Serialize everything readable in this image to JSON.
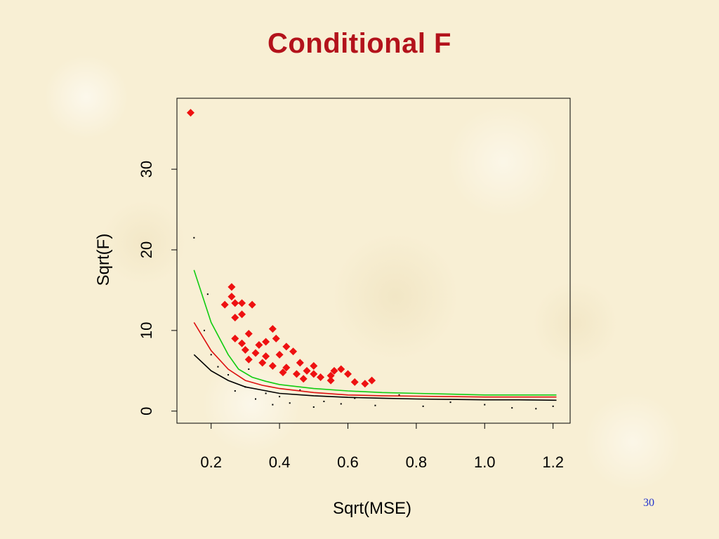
{
  "slide": {
    "title": "Conditional F",
    "page_number": "30"
  },
  "chart_data": {
    "type": "scatter",
    "title": "",
    "xlabel": "Sqrt(MSE)",
    "ylabel": "Sqrt(F)",
    "xlim": [
      0.1,
      1.25
    ],
    "ylim": [
      -1.5,
      38.8
    ],
    "xticks": [
      0.2,
      0.4,
      0.6,
      0.8,
      1.0,
      1.2
    ],
    "xtick_labels": [
      "0.2",
      "0.4",
      "0.6",
      "0.8",
      "1.0",
      "1.2"
    ],
    "yticks": [
      0,
      10,
      20,
      30
    ],
    "ytick_labels": [
      "0",
      "10",
      "20",
      "30"
    ],
    "grid": false,
    "legend": "none",
    "series": [
      {
        "marker": "dot",
        "color": "#000000",
        "points": [
          [
            0.15,
            21.5
          ],
          [
            0.19,
            14.5
          ],
          [
            0.18,
            10.0
          ],
          [
            0.2,
            7.0
          ],
          [
            0.22,
            5.5
          ],
          [
            0.25,
            4.5
          ],
          [
            0.27,
            2.5
          ],
          [
            0.3,
            3.0
          ],
          [
            0.31,
            5.2
          ],
          [
            0.33,
            1.5
          ],
          [
            0.36,
            2.2
          ],
          [
            0.38,
            0.8
          ],
          [
            0.4,
            1.8
          ],
          [
            0.43,
            1.0
          ],
          [
            0.46,
            2.6
          ],
          [
            0.5,
            0.5
          ],
          [
            0.53,
            1.2
          ],
          [
            0.58,
            0.9
          ],
          [
            0.62,
            1.6
          ],
          [
            0.68,
            0.7
          ],
          [
            0.75,
            2.0
          ],
          [
            0.82,
            0.6
          ],
          [
            0.9,
            1.1
          ],
          [
            1.0,
            0.8
          ],
          [
            1.08,
            0.4
          ],
          [
            1.15,
            0.3
          ],
          [
            1.2,
            0.6
          ]
        ]
      },
      {
        "marker": "diamond",
        "color": "#ee1111",
        "points": [
          [
            0.14,
            37.0
          ],
          [
            0.26,
            15.4
          ],
          [
            0.26,
            14.2
          ],
          [
            0.27,
            13.4
          ],
          [
            0.24,
            13.2
          ],
          [
            0.29,
            13.4
          ],
          [
            0.32,
            13.2
          ],
          [
            0.29,
            12.0
          ],
          [
            0.27,
            11.6
          ],
          [
            0.31,
            9.6
          ],
          [
            0.27,
            9.0
          ],
          [
            0.38,
            10.2
          ],
          [
            0.36,
            8.6
          ],
          [
            0.39,
            9.0
          ],
          [
            0.29,
            8.4
          ],
          [
            0.34,
            8.2
          ],
          [
            0.42,
            8.0
          ],
          [
            0.3,
            7.6
          ],
          [
            0.33,
            7.2
          ],
          [
            0.36,
            6.8
          ],
          [
            0.4,
            7.0
          ],
          [
            0.44,
            7.4
          ],
          [
            0.31,
            6.4
          ],
          [
            0.35,
            6.0
          ],
          [
            0.38,
            5.6
          ],
          [
            0.42,
            5.4
          ],
          [
            0.46,
            6.0
          ],
          [
            0.41,
            4.8
          ],
          [
            0.45,
            4.6
          ],
          [
            0.48,
            5.0
          ],
          [
            0.5,
            4.6
          ],
          [
            0.52,
            4.2
          ],
          [
            0.47,
            4.0
          ],
          [
            0.5,
            5.6
          ],
          [
            0.55,
            4.4
          ],
          [
            0.58,
            5.2
          ],
          [
            0.56,
            5.0
          ],
          [
            0.6,
            4.6
          ],
          [
            0.55,
            3.8
          ],
          [
            0.62,
            3.6
          ],
          [
            0.65,
            3.4
          ],
          [
            0.67,
            3.8
          ]
        ]
      },
      {
        "marker": "line",
        "color": "#000000",
        "points": [
          [
            0.15,
            7.0
          ],
          [
            0.2,
            5.0
          ],
          [
            0.25,
            3.8
          ],
          [
            0.3,
            3.0
          ],
          [
            0.35,
            2.6
          ],
          [
            0.4,
            2.2
          ],
          [
            0.5,
            1.9
          ],
          [
            0.6,
            1.7
          ],
          [
            0.7,
            1.6
          ],
          [
            0.8,
            1.5
          ],
          [
            0.9,
            1.45
          ],
          [
            1.0,
            1.4
          ],
          [
            1.1,
            1.4
          ],
          [
            1.21,
            1.35
          ]
        ]
      },
      {
        "marker": "line",
        "color": "#dd1111",
        "points": [
          [
            0.15,
            11.0
          ],
          [
            0.2,
            7.5
          ],
          [
            0.25,
            5.2
          ],
          [
            0.3,
            3.8
          ],
          [
            0.35,
            3.2
          ],
          [
            0.4,
            2.8
          ],
          [
            0.5,
            2.3
          ],
          [
            0.6,
            2.0
          ],
          [
            0.7,
            1.9
          ],
          [
            0.8,
            1.85
          ],
          [
            0.9,
            1.8
          ],
          [
            1.0,
            1.75
          ],
          [
            1.1,
            1.75
          ],
          [
            1.21,
            1.75
          ]
        ]
      },
      {
        "marker": "line",
        "color": "#11cc11",
        "points": [
          [
            0.15,
            17.5
          ],
          [
            0.2,
            11.0
          ],
          [
            0.25,
            7.0
          ],
          [
            0.28,
            5.2
          ],
          [
            0.32,
            4.2
          ],
          [
            0.36,
            3.7
          ],
          [
            0.4,
            3.3
          ],
          [
            0.5,
            2.8
          ],
          [
            0.6,
            2.5
          ],
          [
            0.7,
            2.3
          ],
          [
            0.8,
            2.2
          ],
          [
            0.9,
            2.1
          ],
          [
            1.0,
            2.0
          ],
          [
            1.1,
            2.0
          ],
          [
            1.21,
            2.0
          ]
        ]
      }
    ]
  }
}
